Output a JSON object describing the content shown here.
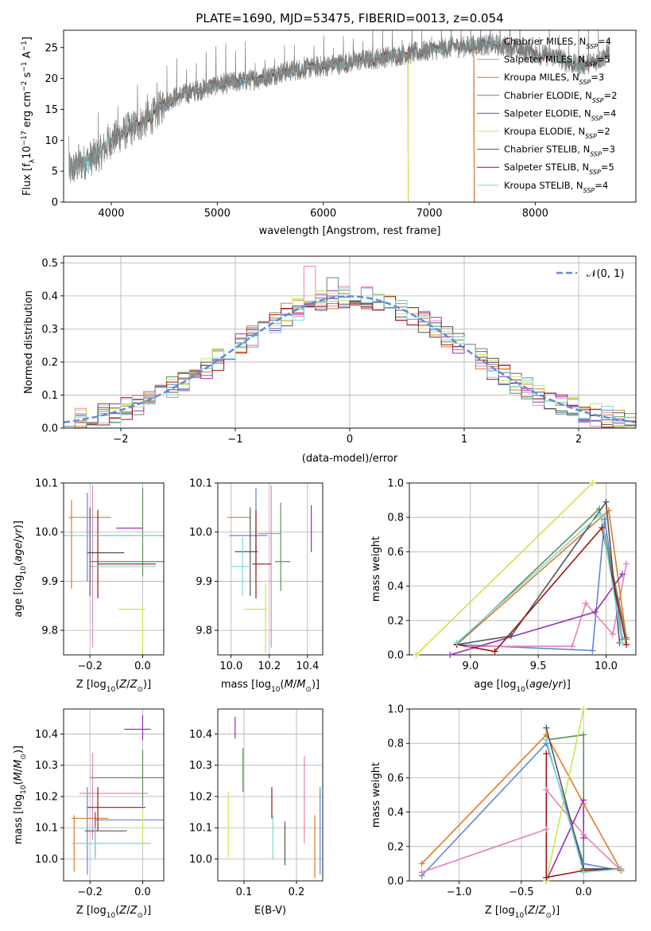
{
  "colors": {
    "Chabrier MILES": "#5f86d9",
    "Salpeter MILES": "#e583b8",
    "Kroupa MILES": "#e07b28",
    "Chabrier ELODIE": "#5f8f5f",
    "Salpeter ELODIE": "#9a2fb8",
    "Kroupa ELODIE": "#c8e64c",
    "Chabrier STELIB": "#555555",
    "Salpeter STELIB": "#a11414",
    "Kroupa STELIB": "#7fd6d6",
    "data": "#808080",
    "normal": "#5b8ed6"
  },
  "chart_data": [
    {
      "id": "spectrum",
      "type": "line",
      "title": "PLATE=1690, MJD=53475, FIBERID=0013, z=0.054",
      "xlabel": "wavelength [Angstrom, rest frame]",
      "ylabel": "Flux [f_λ 10^-17 erg cm^-2 s^-1 A^-1]",
      "xlim": [
        3550,
        8950
      ],
      "ylim": [
        0,
        27.8
      ],
      "xticks": [
        4000,
        5000,
        6000,
        7000,
        8000
      ],
      "yticks": [
        0,
        5,
        10,
        15,
        20,
        25
      ],
      "grid": false,
      "legend_position": "upper-right",
      "spectrum_x": [
        3600,
        3700,
        3800,
        3900,
        4000,
        4100,
        4200,
        4300,
        4400,
        4500,
        4600,
        4800,
        5000,
        5200,
        5400,
        5600,
        5800,
        6000,
        6200,
        6400,
        6600,
        6800,
        7000,
        7200,
        7400,
        7600,
        7800,
        8000,
        8200,
        8400,
        8600,
        8700
      ],
      "spectrum_y": [
        5,
        6,
        7,
        8,
        10,
        11,
        12,
        13,
        14,
        16,
        17,
        18,
        19,
        19.5,
        20,
        21,
        21.5,
        22,
        22.5,
        23,
        23.5,
        24,
        24.5,
        25,
        25.3,
        25.5,
        25,
        24,
        23.5,
        22,
        23,
        24
      ],
      "series": [
        {
          "label_main": "Chabrier MILES",
          "sub": "SSP",
          "n": "4"
        },
        {
          "label_main": "Salpeter MILES",
          "sub": "SSP",
          "n": "5"
        },
        {
          "label_main": "Kroupa MILES",
          "sub": "SSP",
          "n": "3"
        },
        {
          "label_main": "Chabrier ELODIE",
          "sub": "SSP",
          "n": "2"
        },
        {
          "label_main": "Salpeter ELODIE",
          "sub": "SSP",
          "n": "4"
        },
        {
          "label_main": "Kroupa ELODIE",
          "sub": "SSP",
          "n": "2"
        },
        {
          "label_main": "Chabrier STELIB",
          "sub": "SSP",
          "n": "3"
        },
        {
          "label_main": "Salpeter STELIB",
          "sub": "SSP",
          "n": "5"
        },
        {
          "label_main": "Kroupa STELIB",
          "sub": "SSP",
          "n": "4"
        }
      ],
      "model_range": {
        "Chabrier MILES": [
          3600,
          7420
        ],
        "Salpeter MILES": [
          3600,
          7420
        ],
        "Kroupa MILES": [
          3600,
          7420
        ],
        "Chabrier ELODIE": [
          3900,
          6800
        ],
        "Salpeter ELODIE": [
          3900,
          6800
        ],
        "Kroupa ELODIE": [
          3900,
          6800
        ],
        "Chabrier STELIB": [
          3600,
          8700
        ],
        "Salpeter STELIB": [
          3600,
          8700
        ],
        "Kroupa STELIB": [
          3600,
          8700
        ]
      }
    },
    {
      "id": "residuals",
      "type": "histogram",
      "xlabel": "(data-model)/error",
      "ylabel": "Normed distribution",
      "xlim": [
        -2.5,
        2.5
      ],
      "ylim": [
        0,
        0.52
      ],
      "xticks": [
        -2,
        -1,
        0,
        1,
        2
      ],
      "yticks": [
        0.0,
        0.1,
        0.2,
        0.3,
        0.4,
        0.5
      ],
      "grid": true,
      "legend": "𝒩(0, 1)",
      "legend_position": "upper-right",
      "bin_width": 0.1,
      "notable_values": {
        "Salpeter MILES max": 0.49,
        "Chabrier ELODIE peak": 0.455
      }
    },
    {
      "id": "age-vs-Z",
      "type": "scatter",
      "xlabel": "Z [log10(Z/Z⊙)]",
      "ylabel": "age  [log10(age/yr)]",
      "xlim": [
        -0.3,
        0.08
      ],
      "ylim": [
        9.75,
        10.1
      ],
      "xticks": [
        -0.2,
        0.0
      ],
      "yticks": [
        9.8,
        9.9,
        10.0,
        10.1
      ],
      "grid": true,
      "points": [
        {
          "series": "Chabrier MILES",
          "x": -0.21,
          "xerr": 0.0,
          "y": 9.99,
          "yerr": 0.09
        },
        {
          "series": "Chabrier MILES",
          "x": -0.05,
          "xerr": 0.14,
          "y": 9.993,
          "yerr": 0.0
        },
        {
          "series": "Salpeter MILES",
          "x": -0.19,
          "xerr": 0.01,
          "y": 9.93,
          "yerr": 0.165
        },
        {
          "series": "Kroupa MILES",
          "x": -0.2,
          "xerr": 0.08,
          "y": 10.03,
          "yerr": 0.0
        },
        {
          "series": "Kroupa MILES",
          "x": -0.27,
          "xerr": 0.0,
          "y": 9.975,
          "yerr": 0.09
        },
        {
          "series": "Chabrier ELODIE",
          "x": 0.0,
          "xerr": 0.0,
          "y": 10.0,
          "yerr": 0.09
        },
        {
          "series": "Chabrier ELODIE",
          "x": -0.06,
          "xerr": 0.14,
          "y": 9.94,
          "yerr": 0.0
        },
        {
          "series": "Salpeter ELODIE",
          "x": -0.05,
          "xerr": 0.05,
          "y": 10.008,
          "yerr": 0.0
        },
        {
          "series": "Kroupa ELODIE",
          "x": -0.04,
          "xerr": 0.05,
          "y": 9.843,
          "yerr": 0.0
        },
        {
          "series": "Kroupa ELODIE",
          "x": 0.0,
          "xerr": 0.0,
          "y": 9.8,
          "yerr": 0.05
        },
        {
          "series": "Chabrier STELIB",
          "x": -0.2,
          "xerr": 0.0,
          "y": 9.96,
          "yerr": 0.09
        },
        {
          "series": "Chabrier STELIB",
          "x": -0.14,
          "xerr": 0.07,
          "y": 9.958,
          "yerr": 0.0
        },
        {
          "series": "Salpeter STELIB",
          "x": -0.17,
          "xerr": 0.0,
          "y": 9.955,
          "yerr": 0.09
        },
        {
          "series": "Salpeter STELIB",
          "x": -0.06,
          "xerr": 0.11,
          "y": 9.935,
          "yerr": 0.0
        },
        {
          "series": "Kroupa STELIB",
          "x": -0.1,
          "xerr": 0.21,
          "y": 9.993,
          "yerr": 0.0
        },
        {
          "series": "Kroupa STELIB",
          "x": -0.07,
          "xerr": 0.12,
          "y": 9.93,
          "yerr": 0.0
        }
      ]
    },
    {
      "id": "age-vs-mass",
      "type": "scatter",
      "xlabel": "mass [log10(M/M⊙)]",
      "xlim": [
        9.93,
        10.48
      ],
      "ylim": [
        9.75,
        10.1
      ],
      "xticks": [
        10.0,
        10.2,
        10.4
      ],
      "yticks": [
        9.8,
        9.9,
        10.0,
        10.1
      ],
      "grid": true,
      "points": [
        {
          "series": "Chabrier MILES",
          "x": 10.13,
          "xerr": 0.0,
          "y": 10.0,
          "yerr": 0.09
        },
        {
          "series": "Chabrier MILES",
          "x": 10.09,
          "xerr": 0.1,
          "y": 9.993,
          "yerr": 0.0
        },
        {
          "series": "Salpeter MILES",
          "x": 10.21,
          "xerr": 0.0,
          "y": 9.93,
          "yerr": 0.165
        },
        {
          "series": "Salpeter MILES",
          "x": 10.2,
          "xerr": 0.06,
          "y": 9.997,
          "yerr": 0.0
        },
        {
          "series": "Kroupa MILES",
          "x": 10.04,
          "xerr": 0.06,
          "y": 10.03,
          "yerr": 0.0
        },
        {
          "series": "Chabrier ELODIE",
          "x": 10.27,
          "xerr": 0.04,
          "y": 9.94,
          "yerr": 0.0
        },
        {
          "series": "Chabrier ELODIE",
          "x": 10.26,
          "xerr": 0.0,
          "y": 9.97,
          "yerr": 0.09
        },
        {
          "series": "Salpeter ELODIE",
          "x": 10.42,
          "xerr": 0.0,
          "y": 10.007,
          "yerr": 0.048
        },
        {
          "series": "Kroupa ELODIE",
          "x": 10.13,
          "xerr": 0.06,
          "y": 9.843,
          "yerr": 0.0
        },
        {
          "series": "Kroupa ELODIE",
          "x": 10.18,
          "xerr": 0.0,
          "y": 9.825,
          "yerr": 0.07
        },
        {
          "series": "Chabrier STELIB",
          "x": 10.08,
          "xerr": 0.06,
          "y": 9.96,
          "yerr": 0.0
        },
        {
          "series": "Chabrier STELIB",
          "x": 10.1,
          "xerr": 0.0,
          "y": 9.96,
          "yerr": 0.09
        },
        {
          "series": "Salpeter STELIB",
          "x": 10.16,
          "xerr": 0.05,
          "y": 9.935,
          "yerr": 0.0
        },
        {
          "series": "Salpeter STELIB",
          "x": 10.13,
          "xerr": 0.0,
          "y": 9.955,
          "yerr": 0.09
        },
        {
          "series": "Kroupa STELIB",
          "x": 10.05,
          "xerr": 0.05,
          "y": 9.93,
          "yerr": 0.0
        },
        {
          "series": "Kroupa STELIB",
          "x": 10.06,
          "xerr": 0.0,
          "y": 9.93,
          "yerr": 0.06
        }
      ]
    },
    {
      "id": "weight-vs-age",
      "type": "line",
      "xlabel": "age  [log10(age/yr)]",
      "ylabel": "mass weight",
      "xlim": [
        8.55,
        10.22
      ],
      "ylim": [
        0,
        1.0
      ],
      "xticks": [
        9.0,
        9.5,
        10.0
      ],
      "yticks": [
        0.0,
        0.2,
        0.4,
        0.6,
        0.8,
        1.0
      ],
      "grid": true,
      "series": [
        {
          "name": "Chabrier MILES",
          "x": [
            8.9,
            9.9,
            9.99,
            10.12
          ],
          "y": [
            0.06,
            0.025,
            0.79,
            0.09
          ]
        },
        {
          "name": "Salpeter MILES",
          "x": [
            9.0,
            9.75,
            9.85,
            10.05,
            10.15
          ],
          "y": [
            0.05,
            0.05,
            0.3,
            0.12,
            0.53
          ]
        },
        {
          "name": "Kroupa MILES",
          "x": [
            8.9,
            10.02,
            10.15
          ],
          "y": [
            0.06,
            0.84,
            0.09
          ]
        },
        {
          "name": "Chabrier ELODIE",
          "x": [
            8.9,
            9.95,
            10.15
          ],
          "y": [
            0.06,
            0.85,
            0.1
          ]
        },
        {
          "name": "Salpeter ELODIE",
          "x": [
            8.85,
            9.92,
            10.12
          ],
          "y": [
            0.0,
            0.25,
            0.47
          ]
        },
        {
          "name": "Kroupa ELODIE",
          "x": [
            8.6,
            9.9
          ],
          "y": [
            0.0,
            1.0
          ]
        },
        {
          "name": "Chabrier STELIB",
          "x": [
            8.9,
            9.3,
            10.0,
            10.1
          ],
          "y": [
            0.06,
            0.11,
            0.89,
            0.07
          ]
        },
        {
          "name": "Salpeter STELIB",
          "x": [
            8.9,
            9.18,
            9.97,
            10.15
          ],
          "y": [
            0.06,
            0.02,
            0.74,
            0.06
          ]
        },
        {
          "name": "Kroupa STELIB",
          "x": [
            8.9,
            9.96,
            10.12
          ],
          "y": [
            0.07,
            0.82,
            0.07
          ]
        }
      ]
    },
    {
      "id": "mass-vs-Z",
      "type": "scatter",
      "xlabel": "Z [log10(Z/Z⊙)]",
      "ylabel": "mass [log10(M/M⊙)]",
      "xlim": [
        -0.3,
        0.08
      ],
      "ylim": [
        9.93,
        10.48
      ],
      "xticks": [
        -0.2,
        0.0
      ],
      "yticks": [
        10.0,
        10.1,
        10.2,
        10.3,
        10.4
      ],
      "grid": true,
      "points": [
        {
          "series": "Chabrier MILES",
          "x": -0.21,
          "xerr": 0.0,
          "y": 10.09,
          "yerr": 0.14
        },
        {
          "series": "Chabrier MILES",
          "x": -0.05,
          "xerr": 0.13,
          "y": 10.125,
          "yerr": 0.0
        },
        {
          "series": "Salpeter MILES",
          "x": -0.19,
          "xerr": 0.0,
          "y": 10.2,
          "yerr": 0.14
        },
        {
          "series": "Salpeter MILES",
          "x": -0.11,
          "xerr": 0.13,
          "y": 10.21,
          "yerr": 0.0
        },
        {
          "series": "Kroupa MILES",
          "x": -0.26,
          "xerr": 0.0,
          "y": 10.05,
          "yerr": 0.09
        },
        {
          "series": "Kroupa MILES",
          "x": -0.2,
          "xerr": 0.07,
          "y": 10.13,
          "yerr": 0.0
        },
        {
          "series": "Chabrier ELODIE",
          "x": 0.0,
          "xerr": 0.0,
          "y": 10.26,
          "yerr": 0.09
        },
        {
          "series": "Chabrier ELODIE",
          "x": -0.06,
          "xerr": 0.14,
          "y": 10.26,
          "yerr": 0.0
        },
        {
          "series": "Salpeter ELODIE",
          "x": -0.02,
          "xerr": 0.05,
          "y": 10.415,
          "yerr": 0.0
        },
        {
          "series": "Salpeter ELODIE",
          "x": 0.0,
          "xerr": 0.0,
          "y": 10.42,
          "yerr": 0.04
        },
        {
          "series": "Kroupa ELODIE",
          "x": 0.0,
          "xerr": 0.0,
          "y": 10.1,
          "yerr": 0.05
        },
        {
          "series": "Chabrier STELIB",
          "x": -0.18,
          "xerr": 0.0,
          "y": 10.08,
          "yerr": 0.07
        },
        {
          "series": "Chabrier STELIB",
          "x": -0.14,
          "xerr": 0.08,
          "y": 10.09,
          "yerr": 0.0
        },
        {
          "series": "Salpeter STELIB",
          "x": -0.17,
          "xerr": 0.0,
          "y": 10.16,
          "yerr": 0.07
        },
        {
          "series": "Salpeter STELIB",
          "x": -0.1,
          "xerr": 0.11,
          "y": 10.165,
          "yerr": 0.0
        },
        {
          "series": "Kroupa STELIB",
          "x": -0.12,
          "xerr": 0.15,
          "y": 10.05,
          "yerr": 0.0
        },
        {
          "series": "Kroupa STELIB",
          "x": -0.18,
          "xerr": 0.0,
          "y": 10.05,
          "yerr": 0.05
        }
      ]
    },
    {
      "id": "mass-vs-ebv",
      "type": "scatter",
      "xlabel": "E(B-V)",
      "xlim": [
        0.05,
        0.25
      ],
      "ylim": [
        9.93,
        10.48
      ],
      "xticks": [
        0.1,
        0.2
      ],
      "yticks": [
        10.0,
        10.1,
        10.2,
        10.3,
        10.4
      ],
      "grid": true,
      "points": [
        {
          "series": "Chabrier MILES",
          "x": 0.245,
          "y": 10.09,
          "yerr": 0.14
        },
        {
          "series": "Salpeter MILES",
          "x": 0.215,
          "y": 10.19,
          "yerr": 0.14
        },
        {
          "series": "Kroupa MILES",
          "x": 0.235,
          "y": 10.04,
          "yerr": 0.1
        },
        {
          "series": "Chabrier ELODIE",
          "x": 0.098,
          "y": 10.285,
          "yerr": 0.07
        },
        {
          "series": "Salpeter ELODIE",
          "x": 0.083,
          "y": 10.42,
          "yerr": 0.035
        },
        {
          "series": "Kroupa ELODIE",
          "x": 0.07,
          "y": 10.11,
          "yerr": 0.105
        },
        {
          "series": "Chabrier STELIB",
          "x": 0.178,
          "y": 10.05,
          "yerr": 0.07
        },
        {
          "series": "Salpeter STELIB",
          "x": 0.153,
          "y": 10.18,
          "yerr": 0.05
        },
        {
          "series": "Kroupa STELIB",
          "x": 0.155,
          "y": 10.07,
          "yerr": 0.07
        }
      ]
    },
    {
      "id": "weight-vs-Z",
      "type": "line",
      "xlabel": "Z [log10(Z/Z⊙)]",
      "ylabel": "mass weight",
      "xlim": [
        -1.4,
        0.42
      ],
      "ylim": [
        0,
        1.0
      ],
      "xticks": [
        -1.0,
        -0.5,
        0.0
      ],
      "yticks": [
        0.0,
        0.2,
        0.4,
        0.6,
        0.8,
        1.0
      ],
      "grid": true,
      "series": [
        {
          "name": "Chabrier MILES",
          "x": [
            -1.3,
            -0.3,
            0.0,
            0.3
          ],
          "y": [
            0.03,
            0.8,
            0.1,
            0.06
          ]
        },
        {
          "name": "Salpeter MILES",
          "x": [
            -1.3,
            -0.3,
            -0.3,
            0.0,
            0.3
          ],
          "y": [
            0.05,
            0.3,
            0.53,
            0.27,
            0.06
          ]
        },
        {
          "name": "Kroupa MILES",
          "x": [
            -1.3,
            -0.3,
            0.0,
            0.3
          ],
          "y": [
            0.1,
            0.85,
            0.45,
            0.06
          ]
        },
        {
          "name": "Chabrier ELODIE",
          "x": [
            -0.3,
            0.0,
            0.0
          ],
          "y": [
            0.82,
            0.85,
            0.06
          ]
        },
        {
          "name": "Salpeter ELODIE",
          "x": [
            -0.3,
            0.0,
            0.0
          ],
          "y": [
            0.0,
            0.47,
            0.25
          ]
        },
        {
          "name": "Kroupa ELODIE",
          "x": [
            -0.3,
            0.0
          ],
          "y": [
            0.0,
            1.0
          ]
        },
        {
          "name": "Chabrier STELIB",
          "x": [
            -0.3,
            0.0,
            0.3
          ],
          "y": [
            0.89,
            0.07,
            0.07
          ]
        },
        {
          "name": "Salpeter STELIB",
          "x": [
            -0.3,
            -0.3,
            0.0,
            0.3
          ],
          "y": [
            0.74,
            0.02,
            0.06,
            0.07
          ]
        },
        {
          "name": "Kroupa STELIB",
          "x": [
            -0.3,
            0.0,
            0.3
          ],
          "y": [
            0.82,
            0.05,
            0.07
          ]
        }
      ]
    }
  ]
}
